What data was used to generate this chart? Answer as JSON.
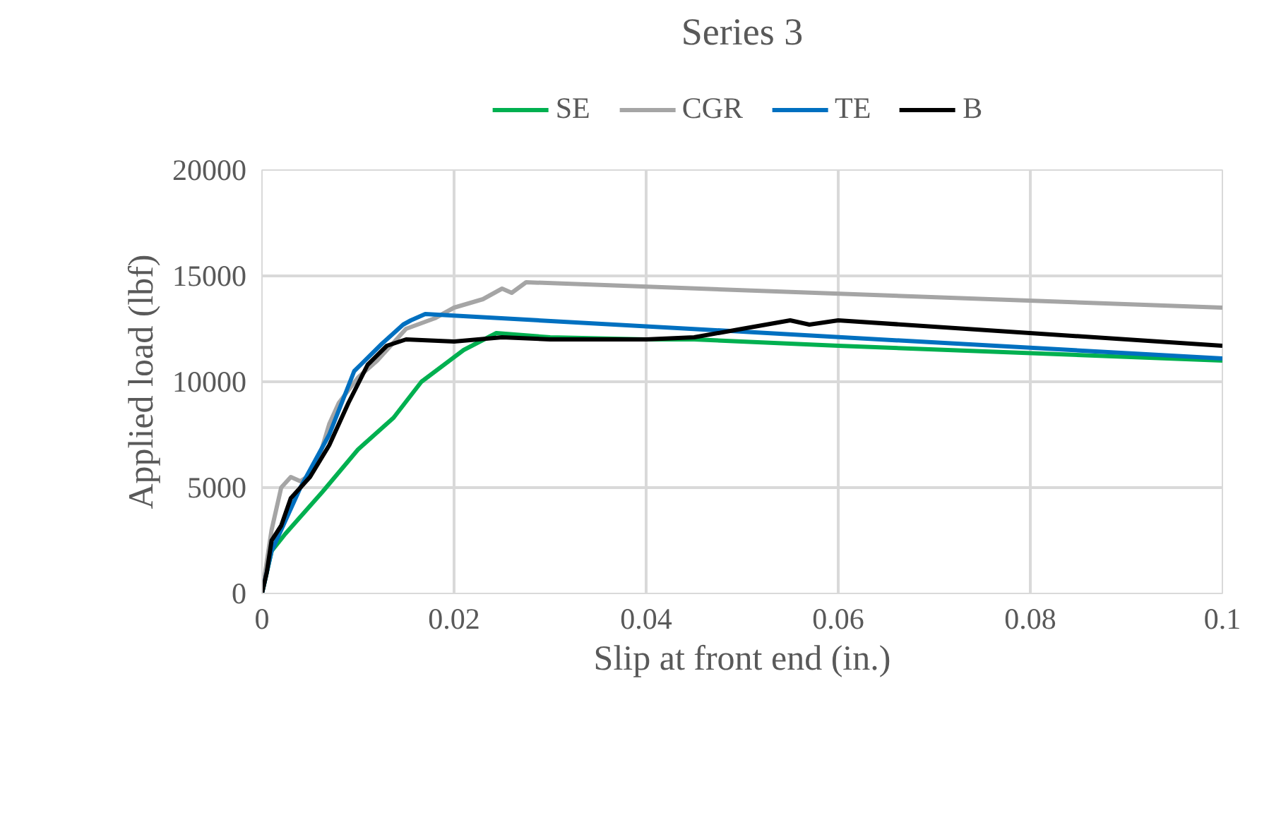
{
  "chart_data": {
    "type": "line",
    "title": "Series 3",
    "xlabel": "Slip at front end (in.)",
    "ylabel": "Applied load (lbf)",
    "xlim": [
      0,
      0.1
    ],
    "xticks": [
      0,
      0.02,
      0.04,
      0.06,
      0.08,
      0.1
    ],
    "ylim": [
      0,
      20000
    ],
    "yticks": [
      0,
      5000,
      10000,
      15000,
      20000
    ],
    "grid": true,
    "legend": "top",
    "marker": "none",
    "line_style": "solid",
    "series": [
      {
        "name": "SE",
        "color": "#00b050",
        "x": [
          0,
          0.0005,
          0.001,
          0.0024,
          0.0063,
          0.01,
          0.0137,
          0.0166,
          0.021,
          0.0244,
          0.03,
          0.04,
          0.045,
          0.06,
          0.1
        ],
        "values": [
          0,
          1000,
          2000,
          2800,
          4800,
          6800,
          8300,
          10000,
          11500,
          12300,
          12100,
          12000,
          12000,
          11700,
          11000
        ]
      },
      {
        "name": "CGR",
        "color": "#a5a5a5",
        "x": [
          0,
          0.0005,
          0.001,
          0.002,
          0.003,
          0.004,
          0.005,
          0.006,
          0.007,
          0.008,
          0.009,
          0.01,
          0.012,
          0.015,
          0.018,
          0.02,
          0.023,
          0.025,
          0.026,
          0.0275,
          0.1
        ],
        "values": [
          0,
          1500,
          3000,
          5000,
          5500,
          5300,
          5600,
          6500,
          8000,
          9000,
          9600,
          10200,
          11000,
          12500,
          13000,
          13500,
          13900,
          14400,
          14200,
          14700,
          13500
        ]
      },
      {
        "name": "TE",
        "color": "#0070c0",
        "x": [
          0,
          0.001,
          0.004,
          0.007,
          0.0096,
          0.0125,
          0.0147,
          0.0155,
          0.017,
          0.1
        ],
        "values": [
          0,
          2000,
          5000,
          7500,
          10500,
          11800,
          12700,
          12900,
          13200,
          11100
        ]
      },
      {
        "name": "B",
        "color": "#000000",
        "x": [
          0,
          0.0005,
          0.001,
          0.002,
          0.003,
          0.005,
          0.007,
          0.009,
          0.011,
          0.013,
          0.015,
          0.02,
          0.025,
          0.03,
          0.035,
          0.04,
          0.045,
          0.05,
          0.055,
          0.057,
          0.06,
          0.1
        ],
        "values": [
          0,
          1000,
          2500,
          3200,
          4500,
          5500,
          7000,
          9000,
          10800,
          11700,
          12000,
          11900,
          12100,
          12000,
          12000,
          12000,
          12100,
          12500,
          12900,
          12700,
          12900,
          11700
        ]
      }
    ]
  }
}
